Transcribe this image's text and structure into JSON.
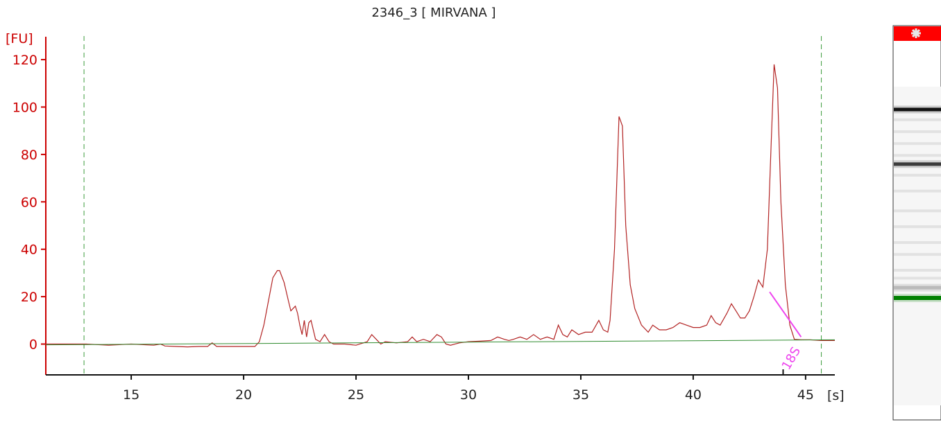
{
  "chart_data": {
    "type": "line",
    "title": "2346_3  [ MIRVANA ]",
    "ylabel": "[FU]",
    "xlabel": "[s]",
    "xlim": [
      11.2,
      46.3
    ],
    "ylim": [
      -13,
      132
    ],
    "xticks": [
      15,
      20,
      25,
      30,
      35,
      40,
      45
    ],
    "yticks": [
      0,
      20,
      40,
      60,
      80,
      100,
      120
    ],
    "series": [
      {
        "color": "#b22222",
        "x": [
          11.2,
          13.0,
          14.0,
          15.0,
          16.0,
          16.3,
          16.5,
          17.0,
          17.5,
          18.0,
          18.4,
          18.6,
          18.8,
          19.5,
          20.0,
          20.5,
          20.7,
          20.9,
          21.1,
          21.3,
          21.5,
          21.6,
          21.8,
          22.0,
          22.1,
          22.3,
          22.4,
          22.5,
          22.6,
          22.7,
          22.8,
          22.9,
          23.0,
          23.2,
          23.4,
          23.6,
          23.8,
          24.0,
          24.5,
          25.0,
          25.5,
          25.7,
          25.9,
          26.1,
          26.3,
          26.8,
          27.3,
          27.5,
          27.7,
          28.0,
          28.3,
          28.6,
          28.8,
          29.0,
          29.2,
          29.6,
          30.0,
          30.5,
          31.0,
          31.3,
          31.6,
          31.8,
          32.0,
          32.3,
          32.6,
          32.9,
          33.2,
          33.5,
          33.8,
          34.0,
          34.2,
          34.4,
          34.6,
          34.9,
          35.2,
          35.5,
          35.8,
          36.0,
          36.2,
          36.3,
          36.5,
          36.7,
          36.85,
          37.0,
          37.2,
          37.4,
          37.7,
          38.0,
          38.2,
          38.5,
          38.8,
          39.1,
          39.4,
          39.7,
          40.0,
          40.3,
          40.6,
          40.8,
          41.0,
          41.2,
          41.5,
          41.7,
          41.9,
          42.1,
          42.3,
          42.5,
          42.7,
          42.9,
          43.1,
          43.3,
          43.45,
          43.6,
          43.75,
          43.9,
          44.1,
          44.3,
          44.5,
          44.8,
          45.2,
          45.7,
          46.3
        ],
        "y": [
          0,
          0,
          -0.5,
          0,
          -0.5,
          0,
          -0.8,
          -1,
          -1.2,
          -1,
          -1,
          0.5,
          -1,
          -1,
          -1,
          -1,
          1,
          8,
          18,
          28,
          31,
          31,
          26,
          18,
          14,
          16,
          13,
          8,
          4,
          10,
          3,
          9,
          10,
          2,
          1,
          4,
          1,
          0,
          0,
          -0.5,
          1,
          4,
          2,
          0,
          1,
          0.5,
          1,
          3,
          1,
          2,
          1,
          4,
          3,
          0,
          -0.5,
          0.5,
          1,
          1.2,
          1.5,
          3,
          2,
          1.5,
          2,
          3,
          2,
          4,
          2,
          3,
          2,
          8,
          4,
          3,
          6,
          4,
          5,
          5,
          10,
          6,
          5,
          10,
          40,
          96,
          92,
          50,
          25,
          15,
          8,
          5,
          8,
          6,
          6,
          7,
          9,
          8,
          7,
          7,
          8,
          12,
          9,
          8,
          13,
          17,
          14,
          11,
          11,
          14,
          20,
          27,
          24,
          40,
          80,
          118,
          108,
          60,
          25,
          8,
          2,
          1.8,
          1.8,
          1.5,
          1.5
        ]
      },
      {
        "color": "#2e8b2e",
        "x": [
          11.2,
          46.3
        ],
        "y": [
          -0.3,
          1.8
        ]
      }
    ],
    "markers": {
      "vlines_x": [
        12.9,
        45.7
      ],
      "peak_label": "18S",
      "peak_x": 44.0,
      "peak_line": [
        [
          43.4,
          22
        ],
        [
          44.8,
          3
        ]
      ]
    }
  },
  "gel": {
    "marker_icon": "asterisk-icon",
    "header_color": "#ff0000",
    "bands": [
      {
        "pos_s": 43.8,
        "intensity": 1.0,
        "color": "#111111"
      },
      {
        "pos_s": 36.9,
        "intensity": 0.85,
        "color": "#222222"
      },
      {
        "pos_s": 21.3,
        "intensity": 0.35,
        "color": "#777777"
      },
      {
        "pos_s": 20.0,
        "intensity": 1.0,
        "color": "#008000"
      }
    ]
  }
}
